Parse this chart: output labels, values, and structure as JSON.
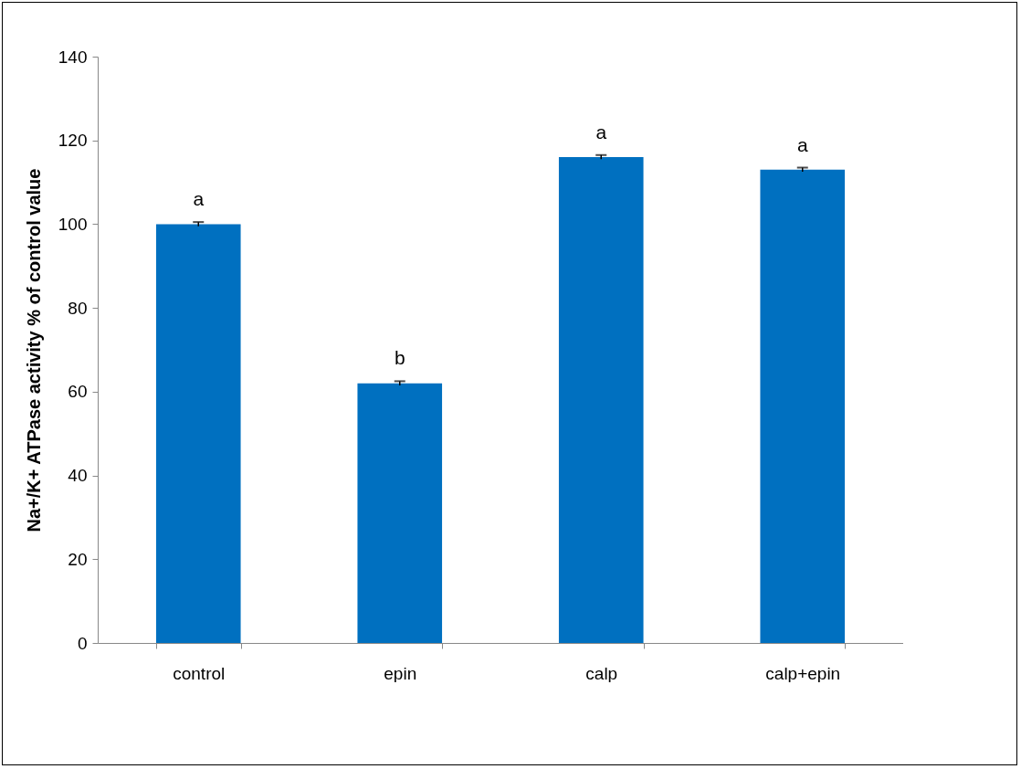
{
  "chart_data": {
    "type": "bar",
    "ylabel": "Na+/K+ ATPase activity % of control value",
    "categories": [
      "control",
      "epin",
      "calp",
      "calp+epin"
    ],
    "values": [
      100,
      62,
      116,
      113
    ],
    "errors": [
      0.5,
      0.5,
      0.5,
      0.5
    ],
    "color": "#0070c0",
    "ylim": [
      0,
      140
    ],
    "yticks": [
      0,
      20,
      40,
      60,
      80,
      100,
      120,
      140
    ],
    "grid": false,
    "annotations": [
      {
        "text": "a",
        "x": "control",
        "y": 100.5
      },
      {
        "text": "b",
        "x": "epin",
        "y": 62.5
      },
      {
        "text": "a",
        "x": "calp",
        "y": 116.5
      },
      {
        "text": "a",
        "x": "calp+epin",
        "y": 113.5
      }
    ]
  }
}
